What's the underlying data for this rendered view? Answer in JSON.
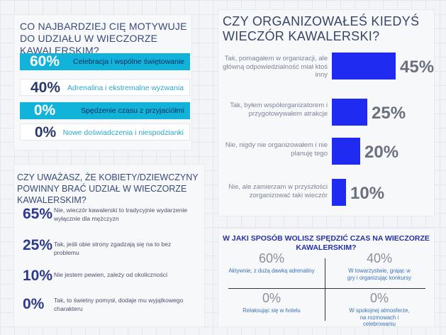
{
  "panel1": {
    "title": "CO NAJBARDZIEJ CIĘ MOTYWUJE DO UDZIAŁU W WIECZORZE KAWALERSKIM?",
    "rows": [
      {
        "pct": "60%",
        "label": "Celebracja i wspólne świętowanie",
        "style": "teal"
      },
      {
        "pct": "40%",
        "label": "Adrenalina i ekstremalne wyzwania",
        "style": "white"
      },
      {
        "pct": "0%",
        "label": "Spędzenie czasu z przyjaciółmi",
        "style": "teal"
      },
      {
        "pct": "0%",
        "label": "Nowe doświadczenia i niespodzianki",
        "style": "white"
      }
    ]
  },
  "panel2": {
    "title": "CZY UWAŻASZ, ŻE KOBIETY/DZIEWCZYNY POWINNY BRAĆ UDZIAŁ W WIECZORZE KAWALERSKIM?",
    "rows": [
      {
        "pct": "65%",
        "label": "Nie, wieczór kawalerski to tradycyjnie wydarzenie wyłącznie dla mężczyzn"
      },
      {
        "pct": "25%",
        "label": "Tak, jeśli obie strony zgadzają się na to bez problemu"
      },
      {
        "pct": "10%",
        "label": "Nie jestem pewien, zależy od okoliczności"
      },
      {
        "pct": "0%",
        "label": "Tak, to świetny pomysł, dodaje mu wyjątkowego charakteru"
      }
    ]
  },
  "panel3": {
    "title": "CZY ORGANIZOWAŁEŚ KIEDYŚ WIECZÓR KAWALERSKI?",
    "pct_labels": [
      "45%",
      "25%",
      "20%",
      "10%"
    ]
  },
  "panel4": {
    "title": "W JAKI SPOSÓB WOLISZ SPĘDZIĆ CZAS NA WIECZORZE KAWALERSKIM?",
    "quadrants": [
      {
        "pct": "60%",
        "label": "Aktywnie, z dużą dawką adrenaliny"
      },
      {
        "pct": "40%",
        "label": "W towarzystwie, grając w gry i organizując konkursy"
      },
      {
        "pct": "0%",
        "label": "Relaksując się w hotelu"
      },
      {
        "pct": "0%",
        "label": "W spokojnej atmosferze, na rozmowach i celebrowaniu"
      }
    ]
  },
  "chart_data": [
    {
      "type": "table",
      "title": "CO NAJBARDZIEJ CIĘ MOTYWUJE DO UDZIAŁU W WIECZORZE KAWALERSKIM?",
      "categories": [
        "Celebracja i wspólne świętowanie",
        "Adrenalina i ekstremalne wyzwania",
        "Spędzenie czasu z przyjaciółmi",
        "Nowe doświadczenia i niespodzianki"
      ],
      "values": [
        60,
        40,
        0,
        0
      ]
    },
    {
      "type": "table",
      "title": "CZY UWAŻASZ, ŻE KOBIETY/DZIEWCZYNY POWINNY BRAĆ UDZIAŁ W WIECZORZE KAWALERSKIM?",
      "categories": [
        "Nie, wieczór kawalerski to tradycyjnie wydarzenie wyłącznie dla mężczyzn",
        "Tak, jeśli obie strony zgadzają się na to bez problemu",
        "Nie jestem pewien, zależy od okoliczności",
        "Tak, to świetny pomysł, dodaje mu wyjątkowego charakteru"
      ],
      "values": [
        65,
        25,
        10,
        0
      ]
    },
    {
      "type": "bar",
      "orientation": "horizontal",
      "title": "CZY ORGANIZOWAŁEŚ KIEDYŚ WIECZÓR KAWALERSKI?",
      "categories": [
        "Tak, pomagałem w organizacji, ale główną odpowiedzialność miał ktoś inny",
        "Tak, byłem współorganizatorem i przygotowywałem atrakcje",
        "Nie, nigdy nie organizowałem i nie planuję tego",
        "Nie, ale zamierzam w przyszłości zorganizować taki wieczór"
      ],
      "values": [
        45,
        25,
        20,
        10
      ],
      "bar_color": "#1f2bf0",
      "xlim": [
        0,
        45
      ]
    },
    {
      "type": "table",
      "title": "W JAKI SPOSÓB WOLISZ SPĘDZIĆ CZAS NA WIECZORZE KAWALERSKIM?",
      "categories": [
        "Aktywnie, z dużą dawką adrenaliny",
        "W towarzystwie, grając w gry i organizując konkursy",
        "Relaksując się w hotelu",
        "W spokojnej atmosferze, na rozmowach i celebrowaniu"
      ],
      "values": [
        60,
        40,
        0,
        0
      ]
    }
  ]
}
